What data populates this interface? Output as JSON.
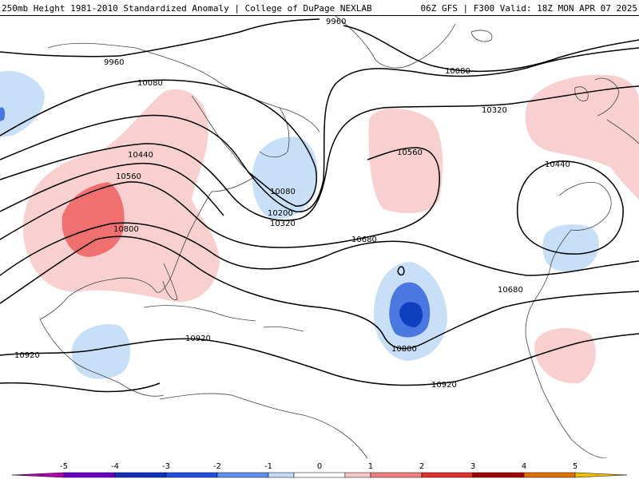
{
  "header": {
    "title_left": "250mb Height 1981-2010 Standardized Anomaly | College of DuPage NEXLAB",
    "title_right": "06Z GFS | F300 Valid: 18Z MON APR 07 2025"
  },
  "contour_labels": [
    "9960",
    "9960",
    "10080",
    "10080",
    "10320",
    "10440",
    "10440",
    "10560",
    "10560",
    "10080",
    "10200",
    "10320",
    "10680",
    "10680",
    "10800",
    "10800",
    "10920",
    "10920",
    "10920"
  ],
  "legend": {
    "ticks": [
      "-5",
      "-4",
      "-3",
      "-2",
      "-1",
      "0",
      "1",
      "2",
      "3",
      "4",
      "5"
    ],
    "colors": [
      "#b000b0",
      "#6a00c8",
      "#1030c0",
      "#2050e0",
      "#6090f0",
      "#c0dcf8",
      "#ffffff",
      "#f8c8c8",
      "#f08080",
      "#e03030",
      "#a00000",
      "#e07000",
      "#f0c000"
    ]
  },
  "colors": {
    "contour": "#000000",
    "land_border": "#444444",
    "positive_light": "#f8d0d0",
    "positive_mid": "#f07070",
    "negative_light": "#c8dff8",
    "negative_mid": "#4a78e0",
    "negative_dark": "#1040c0"
  }
}
